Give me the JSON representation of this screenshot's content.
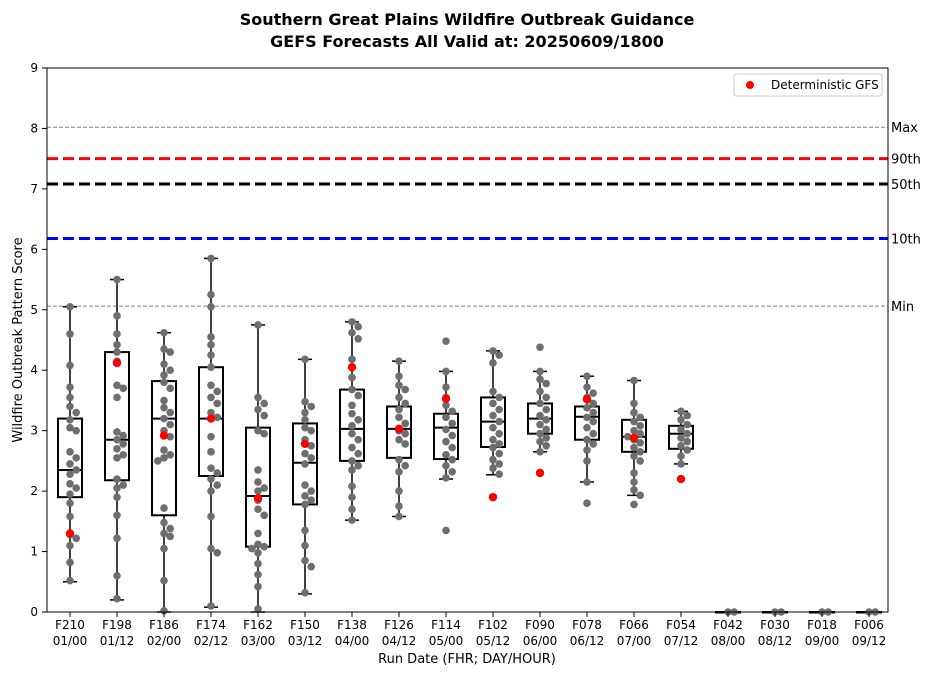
{
  "chart_data": {
    "type": "box",
    "title": "Southern Great Plains Wildfire Outbreak Guidance",
    "subtitle": "GEFS Forecasts All Valid at: 20250609/1800",
    "xlabel": "Run Date (FHR; DAY/HOUR)",
    "ylabel": "Wildfire Outbreak Pattern Score",
    "ylim": [
      0,
      9
    ],
    "yticks": [
      "0",
      "1",
      "2",
      "3",
      "4",
      "5",
      "6",
      "7",
      "8",
      "9"
    ],
    "categories": [
      [
        "F210",
        "01/00"
      ],
      [
        "F198",
        "01/12"
      ],
      [
        "F186",
        "02/00"
      ],
      [
        "F174",
        "02/12"
      ],
      [
        "F162",
        "03/00"
      ],
      [
        "F150",
        "03/12"
      ],
      [
        "F138",
        "04/00"
      ],
      [
        "F126",
        "04/12"
      ],
      [
        "F114",
        "05/00"
      ],
      [
        "F102",
        "05/12"
      ],
      [
        "F090",
        "06/00"
      ],
      [
        "F078",
        "06/12"
      ],
      [
        "F066",
        "07/00"
      ],
      [
        "F054",
        "07/12"
      ],
      [
        "F042",
        "08/00"
      ],
      [
        "F030",
        "08/12"
      ],
      [
        "F018",
        "09/00"
      ],
      [
        "F006",
        "09/12"
      ]
    ],
    "boxes": [
      {
        "min": 0.5,
        "q1": 1.9,
        "median": 2.35,
        "q3": 3.2,
        "max": 5.05
      },
      {
        "min": 0.2,
        "q1": 2.18,
        "median": 2.85,
        "q3": 4.3,
        "max": 5.5
      },
      {
        "min": 0.0,
        "q1": 1.6,
        "median": 3.2,
        "q3": 3.82,
        "max": 4.62
      },
      {
        "min": 0.08,
        "q1": 2.25,
        "median": 3.2,
        "q3": 4.05,
        "max": 5.85
      },
      {
        "min": 0.0,
        "q1": 1.08,
        "median": 1.92,
        "q3": 3.05,
        "max": 4.75
      },
      {
        "min": 0.3,
        "q1": 1.78,
        "median": 2.47,
        "q3": 3.12,
        "max": 4.18
      },
      {
        "min": 1.52,
        "q1": 2.5,
        "median": 3.03,
        "q3": 3.68,
        "max": 4.8
      },
      {
        "min": 1.58,
        "q1": 2.55,
        "median": 3.03,
        "q3": 3.4,
        "max": 4.15
      },
      {
        "min": 2.2,
        "q1": 2.53,
        "median": 3.05,
        "q3": 3.28,
        "max": 3.98
      },
      {
        "min": 2.27,
        "q1": 2.73,
        "median": 3.15,
        "q3": 3.55,
        "max": 4.32
      },
      {
        "min": 2.65,
        "q1": 2.95,
        "median": 3.2,
        "q3": 3.45,
        "max": 3.98
      },
      {
        "min": 2.15,
        "q1": 2.85,
        "median": 3.23,
        "q3": 3.4,
        "max": 3.9
      },
      {
        "min": 1.93,
        "q1": 2.65,
        "median": 2.9,
        "q3": 3.18,
        "max": 3.83
      },
      {
        "min": 2.45,
        "q1": 2.7,
        "median": 2.95,
        "q3": 3.08,
        "max": 3.32
      },
      {
        "min": 0,
        "q1": 0,
        "median": 0,
        "q3": 0,
        "max": 0
      },
      {
        "min": 0,
        "q1": 0,
        "median": 0,
        "q3": 0,
        "max": 0
      },
      {
        "min": 0,
        "q1": 0,
        "median": 0,
        "q3": 0,
        "max": 0
      },
      {
        "min": 0,
        "q1": 0,
        "median": 0,
        "q3": 0,
        "max": 0
      }
    ],
    "members": [
      [
        5.05,
        4.6,
        4.08,
        3.72,
        3.55,
        3.4,
        3.3,
        3.18,
        3.05,
        3.0,
        2.65,
        2.55,
        2.45,
        2.35,
        2.28,
        2.12,
        2.05,
        1.95,
        1.8,
        1.58,
        1.28,
        1.22,
        1.1,
        0.82,
        0.52
      ],
      [
        5.5,
        4.9,
        4.6,
        4.42,
        4.3,
        4.15,
        3.75,
        3.7,
        3.55,
        2.98,
        2.92,
        2.85,
        2.78,
        2.7,
        2.6,
        2.55,
        2.2,
        2.1,
        2.05,
        1.9,
        1.6,
        1.22,
        0.6,
        0.22
      ],
      [
        4.62,
        4.35,
        4.3,
        4.1,
        4.0,
        3.92,
        3.8,
        3.7,
        3.5,
        3.38,
        3.3,
        3.2,
        3.1,
        3.0,
        2.9,
        2.68,
        2.6,
        2.55,
        2.5,
        1.72,
        1.48,
        1.38,
        1.3,
        1.25,
        1.05,
        0.52,
        0.02
      ],
      [
        5.85,
        5.25,
        5.05,
        4.55,
        4.42,
        4.25,
        4.05,
        3.75,
        3.65,
        3.55,
        3.45,
        3.3,
        3.22,
        2.9,
        2.65,
        2.38,
        2.3,
        2.2,
        2.1,
        2.0,
        1.58,
        1.05,
        0.98,
        0.1
      ],
      [
        4.75,
        3.55,
        3.45,
        3.35,
        3.25,
        3.0,
        2.95,
        2.35,
        2.15,
        2.05,
        2.0,
        1.85,
        1.7,
        1.6,
        1.3,
        1.12,
        1.08,
        1.05,
        0.98,
        0.8,
        0.62,
        0.42,
        0.05
      ],
      [
        4.18,
        3.48,
        3.4,
        3.3,
        3.18,
        3.05,
        3.0,
        2.85,
        2.75,
        2.62,
        2.55,
        2.45,
        2.1,
        2.0,
        1.92,
        1.85,
        1.78,
        1.35,
        1.1,
        0.85,
        0.75,
        0.32
      ],
      [
        4.8,
        4.72,
        4.62,
        4.52,
        4.18,
        4.05,
        3.88,
        3.68,
        3.58,
        3.42,
        3.28,
        3.18,
        3.08,
        2.95,
        2.85,
        2.72,
        2.62,
        2.5,
        2.42,
        2.35,
        2.08,
        1.9,
        1.7,
        1.52
      ],
      [
        4.15,
        3.9,
        3.75,
        3.68,
        3.55,
        3.45,
        3.35,
        3.22,
        3.12,
        3.0,
        2.95,
        2.85,
        2.78,
        2.52,
        2.42,
        2.32,
        2.0,
        1.75,
        1.58
      ],
      [
        4.48,
        3.98,
        3.72,
        3.55,
        3.42,
        3.32,
        3.22,
        3.12,
        3.02,
        2.92,
        2.82,
        2.72,
        2.6,
        2.52,
        2.42,
        2.32,
        2.22,
        1.35
      ],
      [
        4.32,
        4.25,
        4.12,
        3.65,
        3.55,
        3.45,
        3.35,
        3.25,
        3.15,
        3.05,
        2.95,
        2.85,
        2.78,
        2.72,
        2.62,
        2.52,
        2.45,
        2.38,
        2.28
      ],
      [
        4.38,
        3.98,
        3.85,
        3.78,
        3.65,
        3.55,
        3.45,
        3.35,
        3.25,
        3.18,
        3.1,
        3.02,
        2.95,
        2.88,
        2.82,
        2.75,
        2.65
      ],
      [
        3.9,
        3.72,
        3.62,
        3.55,
        3.45,
        3.38,
        3.3,
        3.22,
        3.15,
        3.05,
        2.95,
        2.85,
        2.78,
        2.68,
        2.5,
        2.15,
        1.8
      ],
      [
        3.83,
        3.45,
        3.3,
        3.22,
        3.15,
        3.08,
        3.0,
        2.95,
        2.9,
        2.85,
        2.8,
        2.72,
        2.65,
        2.58,
        2.5,
        2.3,
        2.15,
        2.02,
        1.93,
        1.78
      ],
      [
        3.32,
        3.25,
        3.18,
        3.1,
        3.02,
        2.95,
        2.88,
        2.82,
        2.75,
        2.68,
        2.58,
        2.45
      ],
      [
        0,
        0
      ],
      [
        0,
        0
      ],
      [
        0,
        0
      ],
      [
        0,
        0
      ]
    ],
    "deterministic": [
      1.3,
      4.12,
      2.92,
      3.2,
      1.88,
      2.78,
      4.05,
      3.03,
      3.53,
      1.9,
      2.3,
      3.52,
      2.88,
      2.2,
      null,
      null,
      null,
      null
    ],
    "reference_lines": [
      {
        "label": "Max",
        "value": 8.02,
        "color": "#808080",
        "style": "dashed"
      },
      {
        "label": "90th",
        "value": 7.5,
        "color": "#ff0000",
        "style": "bold-dashed"
      },
      {
        "label": "50th",
        "value": 7.08,
        "color": "#000000",
        "style": "bold-dashed"
      },
      {
        "label": "10th",
        "value": 6.18,
        "color": "#0000ff",
        "style": "bold-dashed"
      },
      {
        "label": "Min",
        "value": 5.06,
        "color": "#808080",
        "style": "dashed"
      }
    ],
    "legend": {
      "entries": [
        "Deterministic GFS"
      ],
      "position": "top-right"
    },
    "colors": {
      "members": "#6e6e6e",
      "deterministic": "#ff0000",
      "box": "#000000"
    },
    "grid": false
  }
}
